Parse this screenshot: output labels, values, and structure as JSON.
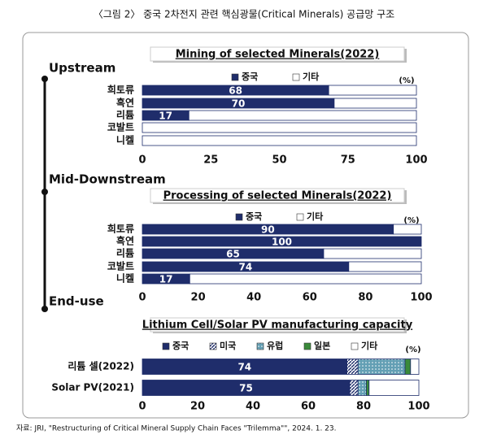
{
  "caption": "〈그림 2〉 중국 2차전지 관련 핵심광물(Critical Minerals) 공급망 구조",
  "source": "자료: JRI, \"Restructuring of Critical Mineral Supply Chain Faces \"Trilemma\"\", 2024. 1. 23.",
  "stages": [
    "Upstream",
    "Mid-Downstream",
    "End-use"
  ],
  "chart_data": [
    {
      "type": "stacked-barh",
      "title": "Mining of selected Minerals(2022)",
      "unit": "(%)",
      "categories": [
        "희토류",
        "흑연",
        "리튬",
        "코발트",
        "니켈"
      ],
      "series": [
        {
          "name": "중국",
          "color": "#1f2d6b",
          "labels": true,
          "values": [
            68,
            70,
            17,
            0,
            0
          ]
        },
        {
          "name": "기타",
          "color": "#ffffff",
          "values": [
            32,
            30,
            83,
            100,
            100
          ]
        }
      ],
      "xlim": [
        0,
        100
      ],
      "xticks": [
        0,
        25,
        50,
        75,
        100
      ]
    },
    {
      "type": "stacked-barh",
      "title": "Processing of selected Minerals(2022)",
      "unit": "(%)",
      "categories": [
        "희토류",
        "흑연",
        "리튬",
        "코발트",
        "니켈"
      ],
      "series": [
        {
          "name": "중국",
          "color": "#1f2d6b",
          "labels": true,
          "values": [
            90,
            100,
            65,
            74,
            17
          ]
        },
        {
          "name": "기타",
          "color": "#ffffff",
          "values": [
            10,
            0,
            35,
            26,
            83
          ]
        }
      ],
      "xlim": [
        0,
        100
      ],
      "xticks": [
        0,
        20,
        40,
        60,
        80,
        100
      ]
    },
    {
      "type": "stacked-barh",
      "title": "Lithium Cell/Solar PV manufacturing capacity",
      "unit": "(%)",
      "categories": [
        "리튬 셀(2022)",
        "Solar PV(2021)"
      ],
      "series": [
        {
          "name": "중국",
          "color": "#1f2d6b",
          "labels": true,
          "values": [
            74,
            75
          ]
        },
        {
          "name": "미국",
          "color": "#1f2d6b",
          "pattern": "hatch",
          "values": [
            4,
            3
          ]
        },
        {
          "name": "유럽",
          "color": "#2f7f9a",
          "pattern": "dots",
          "values": [
            17,
            3
          ]
        },
        {
          "name": "일본",
          "color": "#3a8a3a",
          "values": [
            2,
            1
          ]
        },
        {
          "name": "기타",
          "color": "#ffffff",
          "values": [
            3,
            18
          ]
        }
      ],
      "xlim": [
        0,
        100
      ],
      "xticks": [
        0,
        20,
        40,
        60,
        80,
        100
      ]
    }
  ]
}
